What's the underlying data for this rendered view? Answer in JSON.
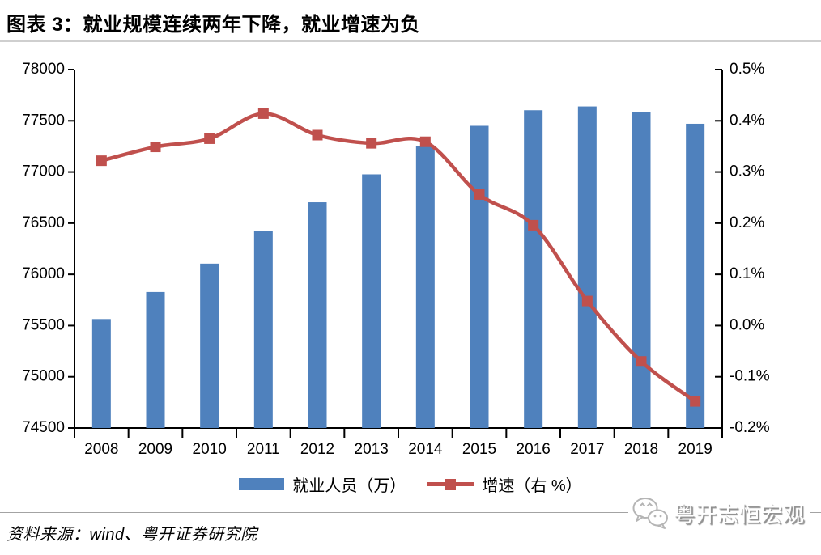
{
  "page": {
    "title": "图表 3：就业规模连续两年下降，就业增速为负",
    "source": "资料来源：wind、粤开证券研究院"
  },
  "watermark": {
    "icon": "wechat-icon",
    "text": "粤开志恒宏观"
  },
  "legend": {
    "items": [
      {
        "label": "就业人员（万）",
        "marker": "bar",
        "color": "#4f81bd"
      },
      {
        "label": "增速（右 %）",
        "marker": "line-square",
        "color": "#c0504d"
      }
    ]
  },
  "chart_data": {
    "type": "bar+line",
    "title": "就业规模连续两年下降，就业增速为负",
    "categories": [
      "2008",
      "2009",
      "2010",
      "2011",
      "2012",
      "2013",
      "2014",
      "2015",
      "2016",
      "2017",
      "2018",
      "2019"
    ],
    "series": [
      {
        "name": "就业人员（万）",
        "type": "bar",
        "axis": "left",
        "color": "#4f81bd",
        "values": [
          75564,
          75828,
          76105,
          76420,
          76704,
          76977,
          77253,
          77451,
          77603,
          77640,
          77586,
          77471
        ]
      },
      {
        "name": "增速（右 %）",
        "type": "line",
        "axis": "right",
        "color": "#c0504d",
        "marker": "square",
        "values": [
          0.322,
          0.349,
          0.365,
          0.414,
          0.372,
          0.356,
          0.359,
          0.256,
          0.196,
          0.048,
          -0.07,
          -0.148
        ]
      }
    ],
    "left_axis": {
      "min": 74500,
      "max": 78000,
      "step": 500,
      "tick_labels": [
        "78000",
        "77500",
        "77000",
        "76500",
        "76000",
        "75500",
        "75000",
        "74500"
      ]
    },
    "right_axis": {
      "min": -0.2,
      "max": 0.5,
      "step": 0.1,
      "tick_labels": [
        "0.5%",
        "0.4%",
        "0.3%",
        "0.2%",
        "0.1%",
        "0.0%",
        "-0.1%",
        "-0.2%"
      ]
    },
    "grid": false,
    "legend_position": "bottom"
  }
}
